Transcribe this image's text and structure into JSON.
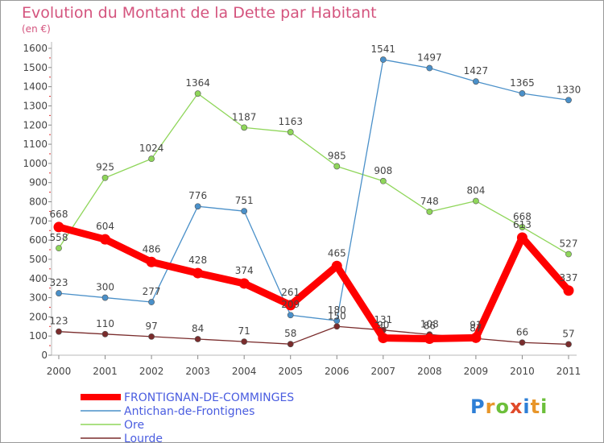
{
  "chart_data": {
    "type": "line",
    "title": "Evolution du Montant de la Dette par Habitant",
    "subtitle": "(en €)",
    "x": [
      "2000",
      "2001",
      "2002",
      "2003",
      "2004",
      "2005",
      "2006",
      "2007",
      "2008",
      "2009",
      "2010",
      "2011"
    ],
    "ylim": [
      0,
      1600
    ],
    "yticks": [
      0,
      100,
      200,
      300,
      400,
      500,
      600,
      700,
      800,
      900,
      1000,
      1100,
      1200,
      1300,
      1400,
      1500,
      1600
    ],
    "grid": false,
    "legend_position": "bottom-left",
    "series": [
      {
        "name": "FRONTIGNAN-DE-COMMINGES",
        "color": "#ff0000",
        "values": [
          668,
          604,
          486,
          428,
          374,
          261,
          465,
          90,
          86,
          91,
          613,
          337
        ]
      },
      {
        "name": "Antichan-de-Frontignes",
        "color": "#4a90c9",
        "values": [
          323,
          300,
          277,
          776,
          751,
          209,
          180,
          1541,
          1497,
          1427,
          1365,
          1330
        ]
      },
      {
        "name": "Ore",
        "color": "#8fd65a",
        "values": [
          558,
          925,
          1024,
          1364,
          1187,
          1163,
          985,
          908,
          748,
          804,
          668,
          527
        ]
      },
      {
        "name": "Lourde",
        "color": "#7a2c2c",
        "values": [
          123,
          110,
          97,
          84,
          71,
          58,
          150,
          131,
          108,
          87,
          66,
          57
        ]
      }
    ]
  },
  "legend_text_color": "#4a5de0",
  "logo": {
    "letters": [
      "P",
      "r",
      "o",
      "x",
      "i",
      "t",
      "i"
    ],
    "colors": [
      "#2e7fd6",
      "#e8962a",
      "#6cbf3a",
      "#e04a2a",
      "#2e7fd6",
      "#e8962a",
      "#6cbf3a"
    ]
  }
}
